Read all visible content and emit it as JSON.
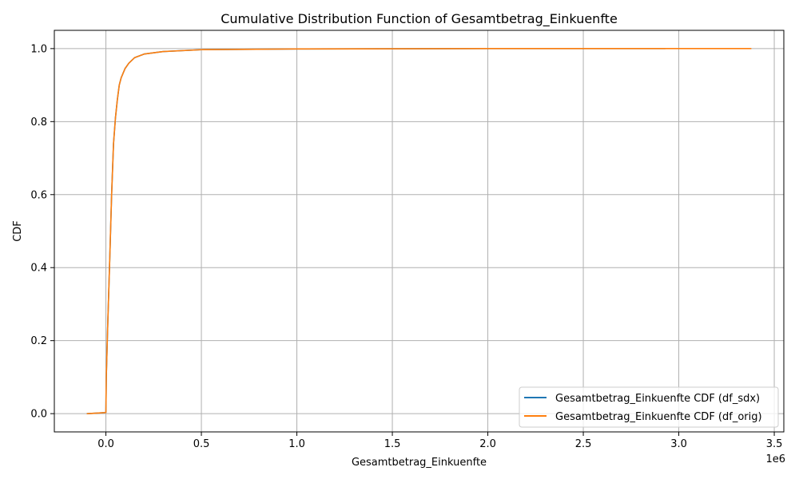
{
  "chart_data": {
    "type": "line",
    "title": "Cumulative Distribution Function of Gesamtbetrag_Einkuenfte",
    "xlabel": "Gesamtbetrag_Einkuenfte",
    "ylabel": "CDF",
    "x_offset_label": "1e6",
    "xlim": [
      -0.27,
      3.55
    ],
    "ylim": [
      -0.05,
      1.05
    ],
    "x_ticks": [
      0.0,
      0.5,
      1.0,
      1.5,
      2.0,
      2.5,
      3.0,
      3.5
    ],
    "x_tick_labels": [
      "0.0",
      "0.5",
      "1.0",
      "1.5",
      "2.0",
      "2.5",
      "3.0",
      "3.5"
    ],
    "y_ticks": [
      0.0,
      0.2,
      0.4,
      0.6,
      0.8,
      1.0
    ],
    "y_tick_labels": [
      "0.0",
      "0.2",
      "0.4",
      "0.6",
      "0.8",
      "1.0"
    ],
    "grid": true,
    "legend_position": "lower-right",
    "series": [
      {
        "name": "Gesamtbetrag_Einkuenfte CDF (df_sdx)",
        "color": "#1f77b4",
        "x": [
          -0.1,
          0.0,
          0.002,
          0.01,
          0.02,
          0.03,
          0.04,
          0.05,
          0.06,
          0.07,
          0.08,
          0.1,
          0.12,
          0.15,
          0.2,
          0.3,
          0.5,
          1.0,
          2.0,
          2.93
        ],
        "y": [
          0.0,
          0.003,
          0.1,
          0.25,
          0.42,
          0.6,
          0.74,
          0.81,
          0.86,
          0.9,
          0.92,
          0.945,
          0.96,
          0.975,
          0.985,
          0.992,
          0.997,
          0.999,
          1.0,
          1.0
        ]
      },
      {
        "name": "Gesamtbetrag_Einkuenfte CDF (df_orig)",
        "color": "#ff7f0e",
        "x": [
          -0.1,
          0.0,
          0.002,
          0.01,
          0.02,
          0.03,
          0.04,
          0.05,
          0.06,
          0.07,
          0.08,
          0.1,
          0.12,
          0.15,
          0.2,
          0.3,
          0.5,
          1.0,
          2.0,
          3.38
        ],
        "y": [
          0.0,
          0.003,
          0.1,
          0.25,
          0.42,
          0.6,
          0.74,
          0.81,
          0.86,
          0.9,
          0.92,
          0.945,
          0.96,
          0.975,
          0.985,
          0.992,
          0.997,
          0.999,
          1.0,
          1.0
        ]
      }
    ]
  }
}
